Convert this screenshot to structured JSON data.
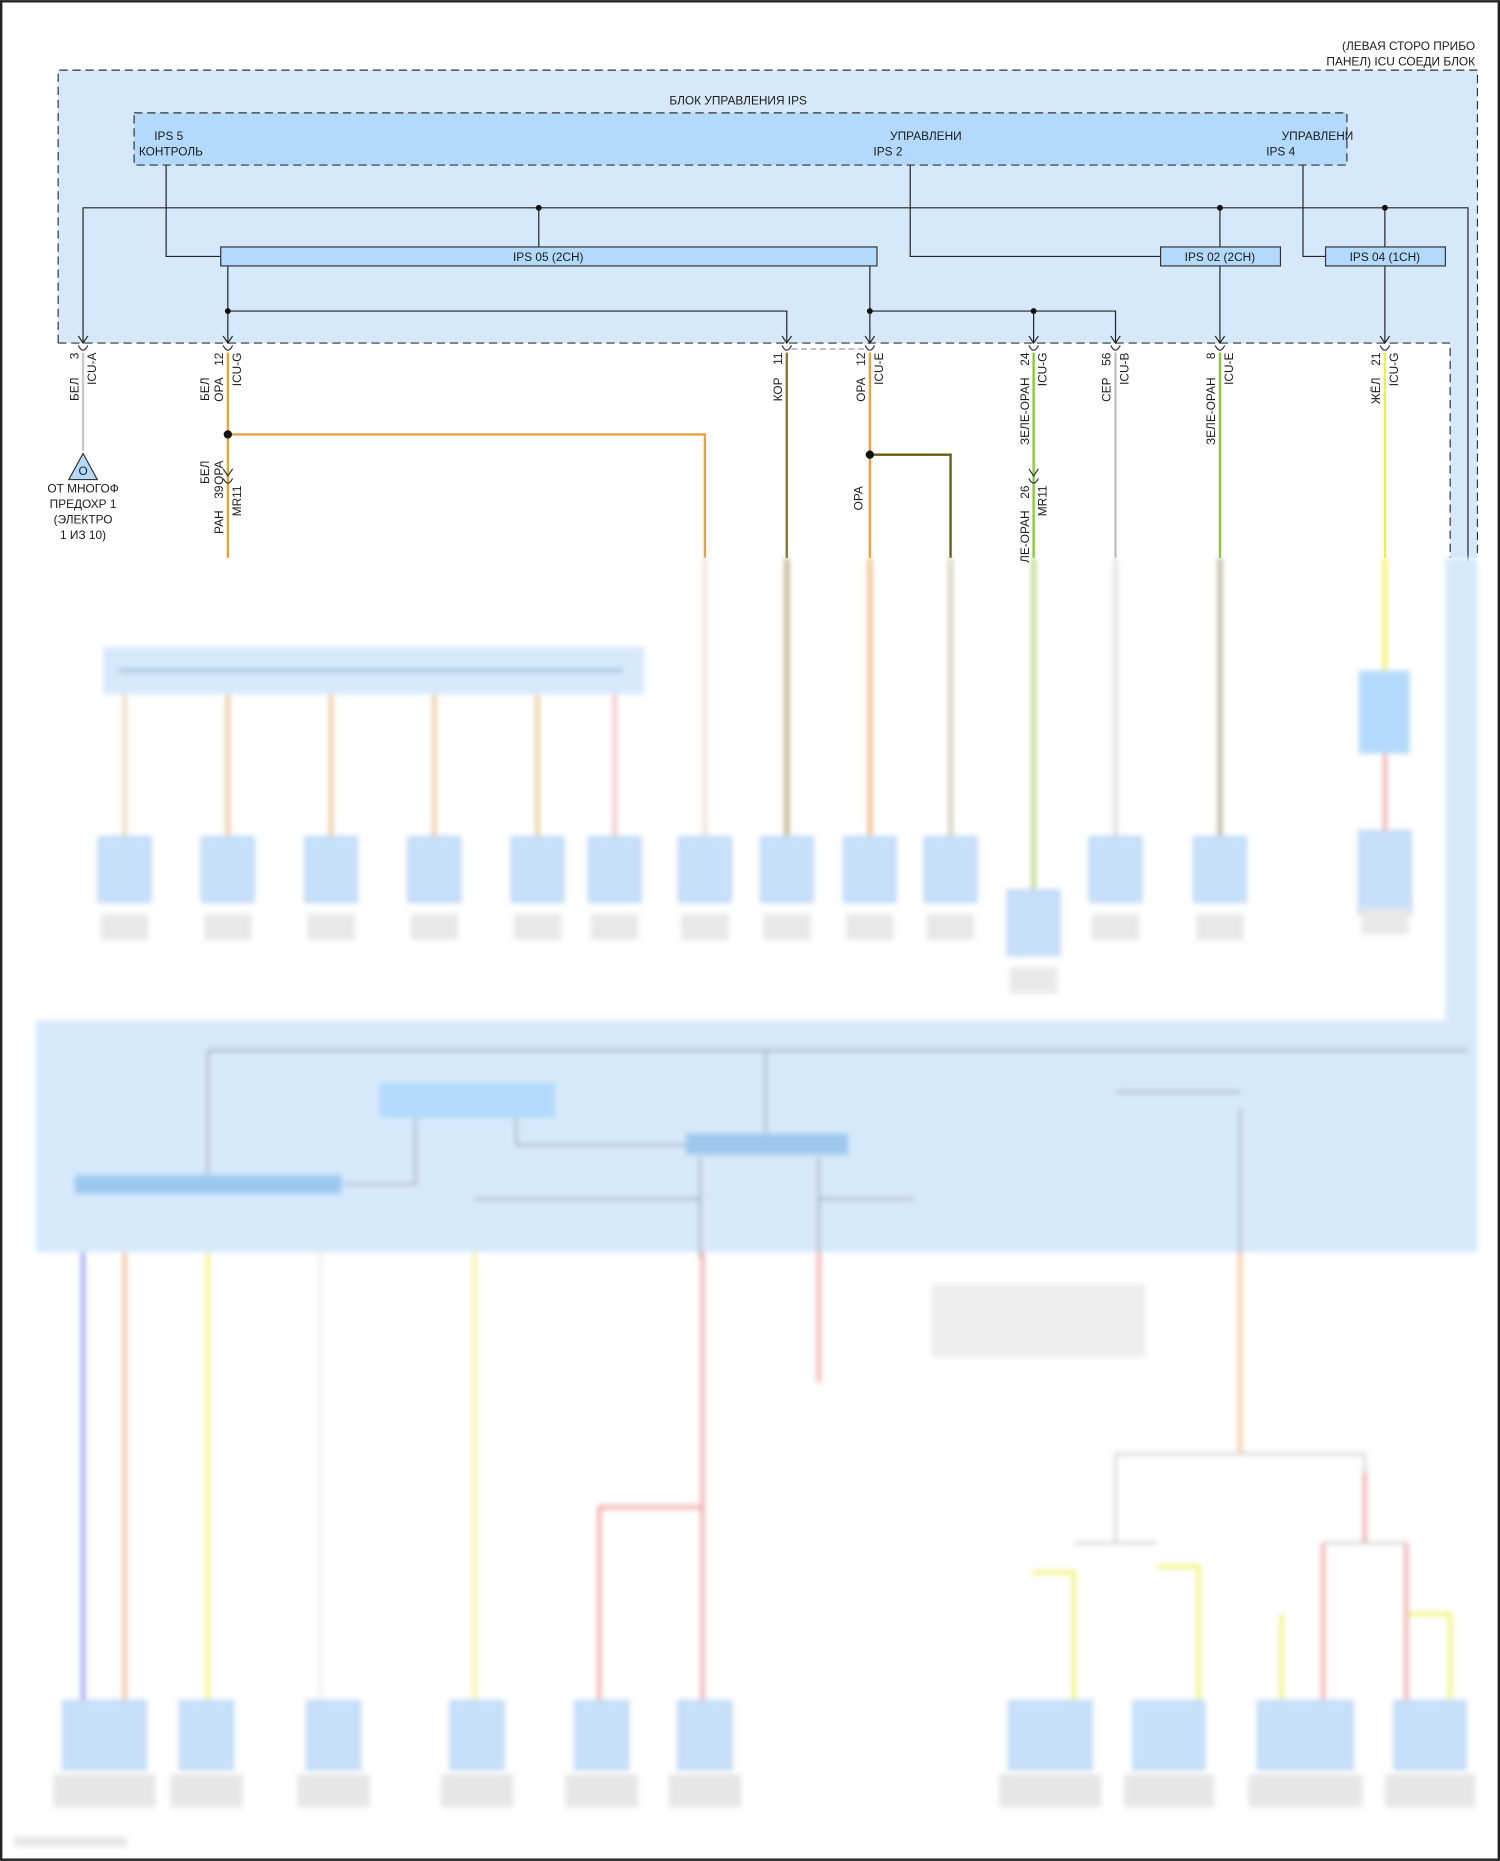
{
  "diagram": {
    "connector_block_label": [
      "(ЛЕВАЯ СТОРО ПРИБО",
      "ПАНЕЛ) ICU СОЕДИ БЛОК"
    ],
    "ips_block_title": "БЛОК УПРАВЛЕНИЯ IPS",
    "control_labels": {
      "ips5": [
        "IPS 5",
        "КОНТРОЛЬ"
      ],
      "ips2": [
        "УПРАВЛЕНИ",
        "IPS 2"
      ],
      "ips4": [
        "УПРАВЛЕНИ",
        "IPS 4"
      ]
    },
    "switches": {
      "ips05": "IPS 05 (2CH)",
      "ips02": "IPS 02 (2CH)",
      "ips04": "IPS 04 (1CH)"
    },
    "connectors": [
      {
        "pin": "3",
        "connector": "ICU-A",
        "wire": [
          "БЕЛ"
        ],
        "color": "#c8c8c8"
      },
      {
        "pin": "12",
        "connector": "ICU-G",
        "wire": [
          "БЕЛ",
          "ОРА"
        ],
        "color": "#e8a040"
      },
      {
        "pin": "11",
        "connector": "",
        "wire": [
          "КОР"
        ],
        "color": "#8a7a20"
      },
      {
        "pin": "12",
        "connector": "ICU-E",
        "wire": [
          "ОРА"
        ],
        "color": "#e8a040"
      },
      {
        "pin": "24",
        "connector": "ICU-G",
        "wire": [
          "ЗЕЛЕ-ОРАН"
        ],
        "color": "#8cc63f"
      },
      {
        "pin": "56",
        "connector": "ICU-B",
        "wire": [
          "СЕР"
        ],
        "color": "#c0c0c0"
      },
      {
        "pin": "8",
        "connector": "ICU-E",
        "wire": [
          "ЗЕЛЕ-ОРАН"
        ],
        "color": "#8cc63f"
      },
      {
        "pin": "21",
        "connector": "ICU-G",
        "wire": [
          "ЖЁЛ"
        ],
        "color": "#f0f040"
      }
    ],
    "inline_connectors": [
      {
        "pin": "39",
        "connector": "MR11",
        "wire_above": [
          "БЕЛ",
          "ОРА"
        ],
        "wire_below": "РАН"
      },
      {
        "pin": "26",
        "connector": "MR11",
        "wire_below": "ЛЕ-ОРАН"
      }
    ],
    "splice_wire_label": "ОРА",
    "fuse_source": {
      "symbol": "O",
      "label": [
        "ОТ МНОГОФ",
        "ПРЕДОХР 1",
        "(ЭЛЕКТРО",
        "1 ИЗ 10)"
      ]
    },
    "colors": {
      "block_fill": "#d6e9fb",
      "control_fill": "#b3dafc",
      "switch_fill": "#b3dafc",
      "wire_dark_olive": "#6b5a10"
    }
  }
}
